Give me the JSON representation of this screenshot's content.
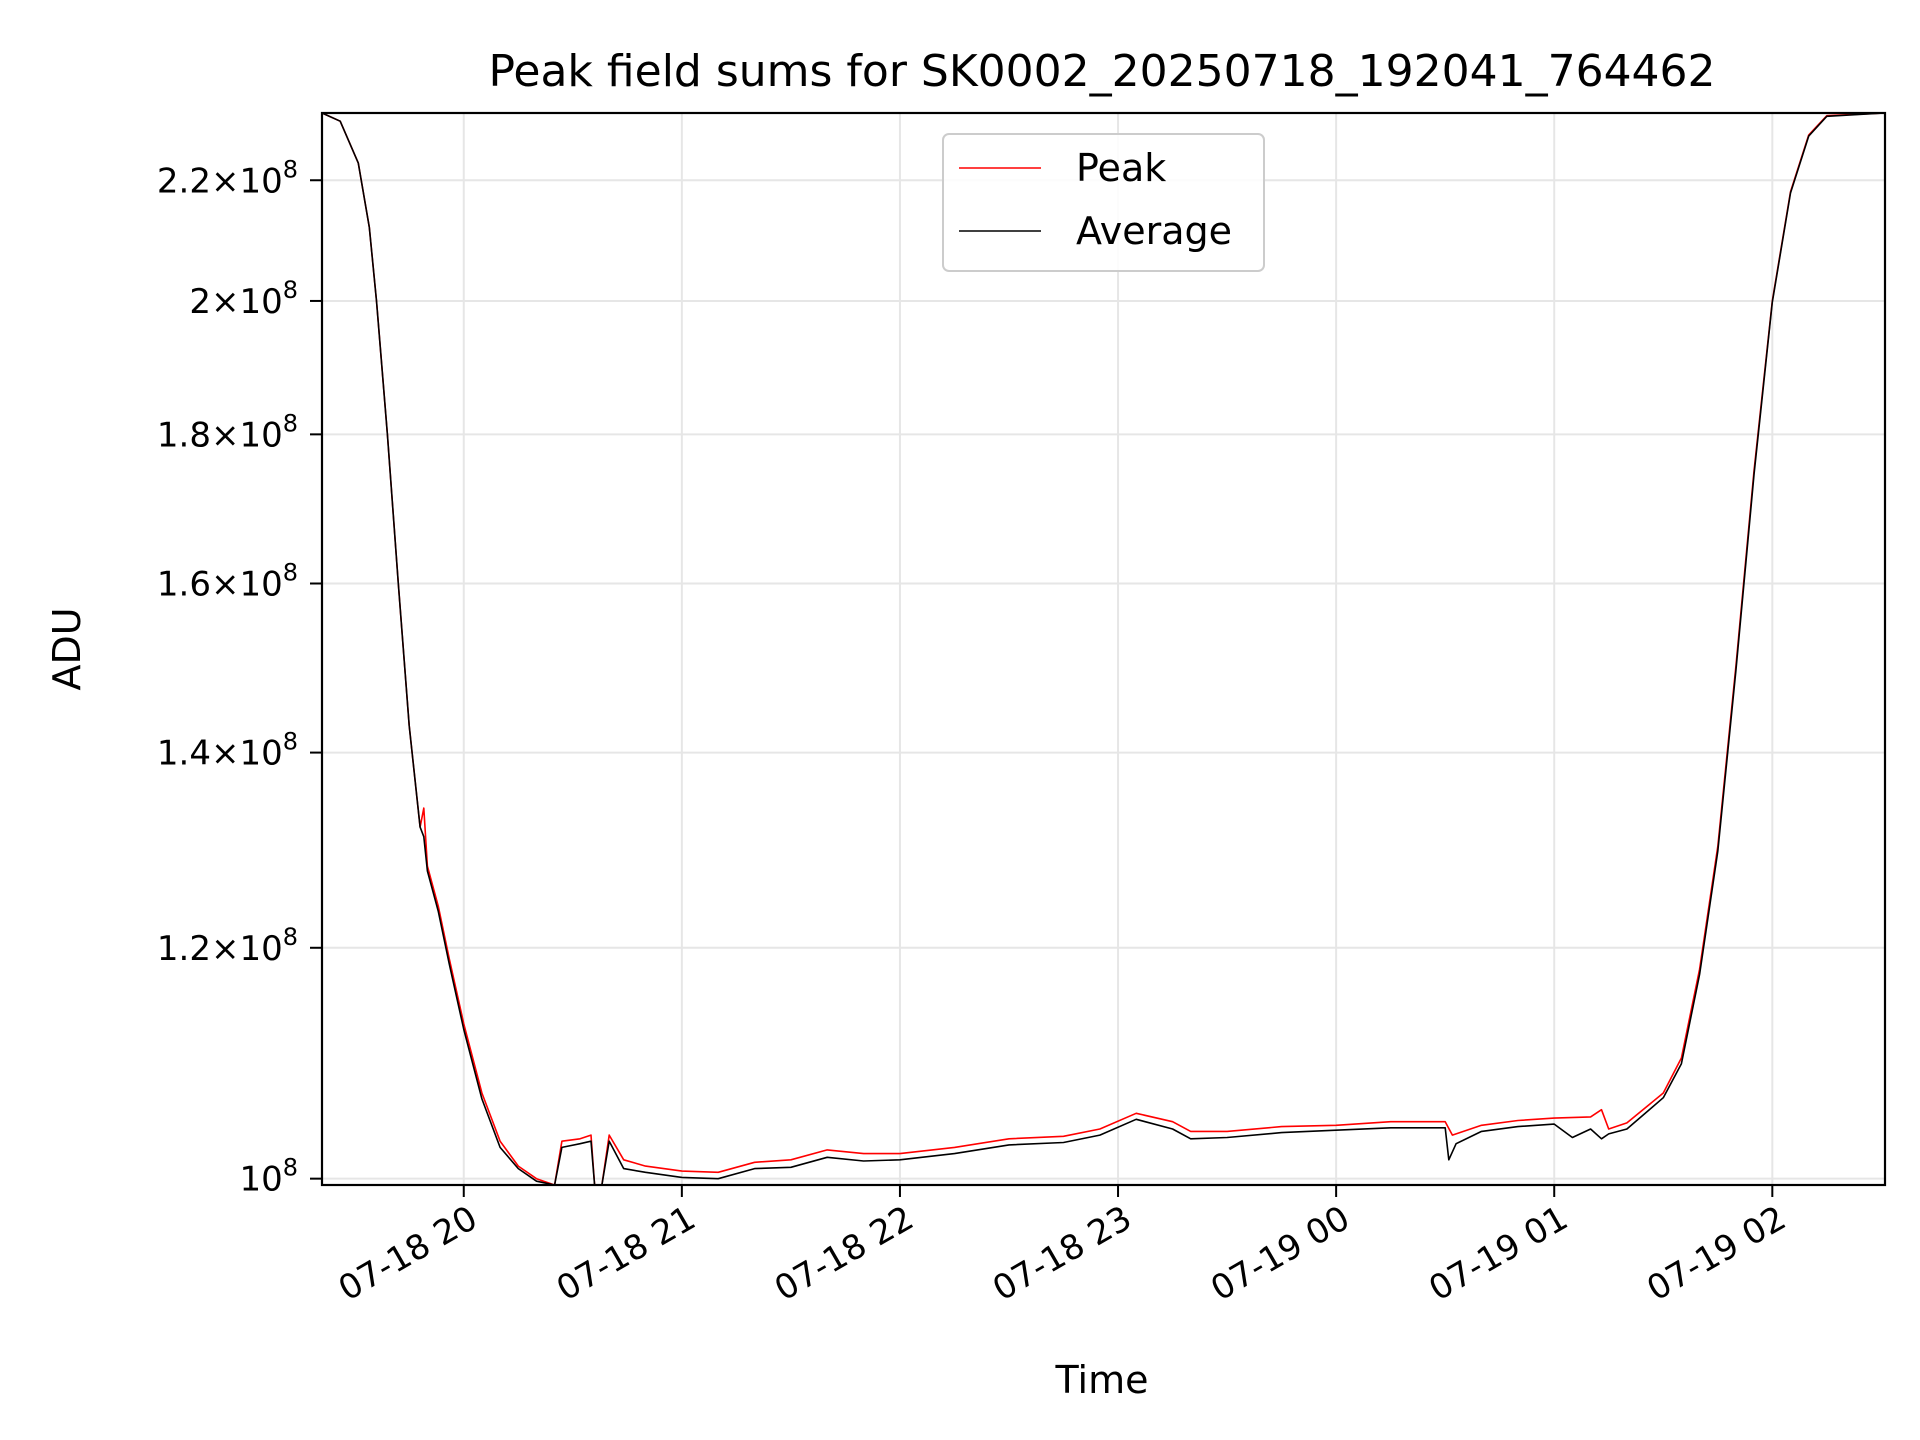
{
  "chart_data": {
    "type": "line",
    "title": "Peak field sums for SK0002_20250718_192041_764462",
    "xlabel": "Time",
    "ylabel": "ADU",
    "x_axis": {
      "kind": "datetime",
      "range": [
        "2025-07-18 19:21",
        "2025-07-19 02:31"
      ],
      "ticks": [
        "2025-07-18 20:00",
        "2025-07-18 21:00",
        "2025-07-18 22:00",
        "2025-07-18 23:00",
        "2025-07-19 00:00",
        "2025-07-19 01:00",
        "2025-07-19 02:00"
      ],
      "tick_labels": [
        "07-18 20",
        "07-18 21",
        "07-18 22",
        "07-18 23",
        "07-19 00",
        "07-19 01",
        "07-19 02"
      ],
      "tick_rotation": 30
    },
    "y_axis": {
      "scale": "log",
      "range": [
        99500000,
        232000000
      ],
      "ticks": [
        100000000,
        120000000,
        140000000,
        160000000,
        180000000,
        200000000,
        220000000
      ],
      "tick_labels": [
        {
          "mantissa": "",
          "exponent": "8"
        },
        {
          "mantissa": "1.2",
          "exponent": "8"
        },
        {
          "mantissa": "1.4",
          "exponent": "8"
        },
        {
          "mantissa": "1.6",
          "exponent": "8"
        },
        {
          "mantissa": "1.8",
          "exponent": "8"
        },
        {
          "mantissa": "2",
          "exponent": "8"
        },
        {
          "mantissa": "2.2",
          "exponent": "8"
        }
      ]
    },
    "grid": true,
    "legend": {
      "placement": "upper-center",
      "entries": [
        "Peak",
        "Average"
      ]
    },
    "series": [
      {
        "name": "Peak",
        "color": "#ff0000",
        "points": [
          [
            "2025-07-18 19:21",
            232000000
          ],
          [
            "2025-07-18 19:26",
            230500000
          ],
          [
            "2025-07-18 19:31",
            223000000
          ],
          [
            "2025-07-18 19:34",
            212000000
          ],
          [
            "2025-07-18 19:36",
            200000000
          ],
          [
            "2025-07-18 19:39",
            180000000
          ],
          [
            "2025-07-18 19:42",
            160000000
          ],
          [
            "2025-07-18 19:45",
            143000000
          ],
          [
            "2025-07-18 19:48",
            132000000
          ],
          [
            "2025-07-18 19:49",
            134000000
          ],
          [
            "2025-07-18 19:50",
            128000000
          ],
          [
            "2025-07-18 19:53",
            124000000
          ],
          [
            "2025-07-18 19:56",
            119000000
          ],
          [
            "2025-07-18 20:00",
            113000000
          ],
          [
            "2025-07-18 20:05",
            107000000
          ],
          [
            "2025-07-18 20:10",
            103000000
          ],
          [
            "2025-07-18 20:15",
            101000000
          ],
          [
            "2025-07-18 20:20",
            100000000
          ],
          [
            "2025-07-18 20:25",
            99500000
          ],
          [
            "2025-07-18 20:27",
            103000000
          ],
          [
            "2025-07-18 20:32",
            103200000
          ],
          [
            "2025-07-18 20:35",
            103500000
          ],
          [
            "2025-07-18 20:36",
            99500000
          ],
          [
            "2025-07-18 20:38",
            99500000
          ],
          [
            "2025-07-18 20:40",
            103500000
          ],
          [
            "2025-07-18 20:44",
            101500000
          ],
          [
            "2025-07-18 20:50",
            101000000
          ],
          [
            "2025-07-18 21:00",
            100600000
          ],
          [
            "2025-07-18 21:10",
            100500000
          ],
          [
            "2025-07-18 21:20",
            101300000
          ],
          [
            "2025-07-18 21:30",
            101500000
          ],
          [
            "2025-07-18 21:40",
            102300000
          ],
          [
            "2025-07-18 21:50",
            102000000
          ],
          [
            "2025-07-18 22:00",
            102000000
          ],
          [
            "2025-07-18 22:15",
            102500000
          ],
          [
            "2025-07-18 22:30",
            103200000
          ],
          [
            "2025-07-18 22:45",
            103400000
          ],
          [
            "2025-07-18 22:55",
            104000000
          ],
          [
            "2025-07-18 23:05",
            105300000
          ],
          [
            "2025-07-18 23:15",
            104600000
          ],
          [
            "2025-07-18 23:20",
            103800000
          ],
          [
            "2025-07-18 23:30",
            103800000
          ],
          [
            "2025-07-18 23:45",
            104200000
          ],
          [
            "2025-07-19 00:00",
            104300000
          ],
          [
            "2025-07-19 00:15",
            104600000
          ],
          [
            "2025-07-19 00:30",
            104600000
          ],
          [
            "2025-07-19 00:32",
            103500000
          ],
          [
            "2025-07-19 00:40",
            104300000
          ],
          [
            "2025-07-19 00:50",
            104700000
          ],
          [
            "2025-07-19 01:00",
            104900000
          ],
          [
            "2025-07-19 01:10",
            105000000
          ],
          [
            "2025-07-19 01:13",
            105600000
          ],
          [
            "2025-07-19 01:15",
            104000000
          ],
          [
            "2025-07-19 01:20",
            104500000
          ],
          [
            "2025-07-19 01:30",
            107000000
          ],
          [
            "2025-07-19 01:35",
            110000000
          ],
          [
            "2025-07-19 01:40",
            118000000
          ],
          [
            "2025-07-19 01:45",
            130000000
          ],
          [
            "2025-07-19 01:50",
            150000000
          ],
          [
            "2025-07-19 01:55",
            175000000
          ],
          [
            "2025-07-19 02:00",
            200000000
          ],
          [
            "2025-07-19 02:05",
            218000000
          ],
          [
            "2025-07-19 02:10",
            228000000
          ],
          [
            "2025-07-19 02:15",
            231500000
          ],
          [
            "2025-07-19 02:31",
            232000000
          ]
        ]
      },
      {
        "name": "Average",
        "color": "#000000",
        "points": [
          [
            "2025-07-18 19:21",
            232000000
          ],
          [
            "2025-07-18 19:26",
            230500000
          ],
          [
            "2025-07-18 19:31",
            223000000
          ],
          [
            "2025-07-18 19:34",
            212000000
          ],
          [
            "2025-07-18 19:36",
            200000000
          ],
          [
            "2025-07-18 19:39",
            180000000
          ],
          [
            "2025-07-18 19:42",
            160000000
          ],
          [
            "2025-07-18 19:45",
            143000000
          ],
          [
            "2025-07-18 19:48",
            132000000
          ],
          [
            "2025-07-18 19:49",
            131000000
          ],
          [
            "2025-07-18 19:50",
            127500000
          ],
          [
            "2025-07-18 19:53",
            123500000
          ],
          [
            "2025-07-18 19:56",
            118500000
          ],
          [
            "2025-07-18 20:00",
            112500000
          ],
          [
            "2025-07-18 20:05",
            106500000
          ],
          [
            "2025-07-18 20:10",
            102500000
          ],
          [
            "2025-07-18 20:15",
            100800000
          ],
          [
            "2025-07-18 20:20",
            99800000
          ],
          [
            "2025-07-18 20:25",
            99500000
          ],
          [
            "2025-07-18 20:27",
            102500000
          ],
          [
            "2025-07-18 20:32",
            102800000
          ],
          [
            "2025-07-18 20:35",
            103000000
          ],
          [
            "2025-07-18 20:36",
            99500000
          ],
          [
            "2025-07-18 20:38",
            99500000
          ],
          [
            "2025-07-18 20:40",
            103000000
          ],
          [
            "2025-07-18 20:44",
            100800000
          ],
          [
            "2025-07-18 20:50",
            100500000
          ],
          [
            "2025-07-18 21:00",
            100100000
          ],
          [
            "2025-07-18 21:10",
            100000000
          ],
          [
            "2025-07-18 21:20",
            100800000
          ],
          [
            "2025-07-18 21:30",
            100900000
          ],
          [
            "2025-07-18 21:40",
            101700000
          ],
          [
            "2025-07-18 21:50",
            101400000
          ],
          [
            "2025-07-18 22:00",
            101500000
          ],
          [
            "2025-07-18 22:15",
            102000000
          ],
          [
            "2025-07-18 22:30",
            102700000
          ],
          [
            "2025-07-18 22:45",
            102900000
          ],
          [
            "2025-07-18 22:55",
            103500000
          ],
          [
            "2025-07-18 23:05",
            104800000
          ],
          [
            "2025-07-18 23:15",
            104000000
          ],
          [
            "2025-07-18 23:20",
            103200000
          ],
          [
            "2025-07-18 23:30",
            103300000
          ],
          [
            "2025-07-18 23:45",
            103700000
          ],
          [
            "2025-07-19 00:00",
            103900000
          ],
          [
            "2025-07-19 00:15",
            104100000
          ],
          [
            "2025-07-19 00:30",
            104100000
          ],
          [
            "2025-07-19 00:31",
            101500000
          ],
          [
            "2025-07-19 00:33",
            102800000
          ],
          [
            "2025-07-19 00:40",
            103800000
          ],
          [
            "2025-07-19 00:50",
            104200000
          ],
          [
            "2025-07-19 01:00",
            104400000
          ],
          [
            "2025-07-19 01:05",
            103300000
          ],
          [
            "2025-07-19 01:10",
            104000000
          ],
          [
            "2025-07-19 01:13",
            103200000
          ],
          [
            "2025-07-19 01:15",
            103600000
          ],
          [
            "2025-07-19 01:20",
            104000000
          ],
          [
            "2025-07-19 01:30",
            106600000
          ],
          [
            "2025-07-19 01:35",
            109500000
          ],
          [
            "2025-07-19 01:40",
            117500000
          ],
          [
            "2025-07-19 01:45",
            129500000
          ],
          [
            "2025-07-19 01:50",
            149500000
          ],
          [
            "2025-07-19 01:55",
            174500000
          ],
          [
            "2025-07-19 02:00",
            199800000
          ],
          [
            "2025-07-19 02:05",
            217800000
          ],
          [
            "2025-07-19 02:10",
            227800000
          ],
          [
            "2025-07-19 02:15",
            231400000
          ],
          [
            "2025-07-19 02:31",
            232000000
          ]
        ]
      }
    ]
  }
}
